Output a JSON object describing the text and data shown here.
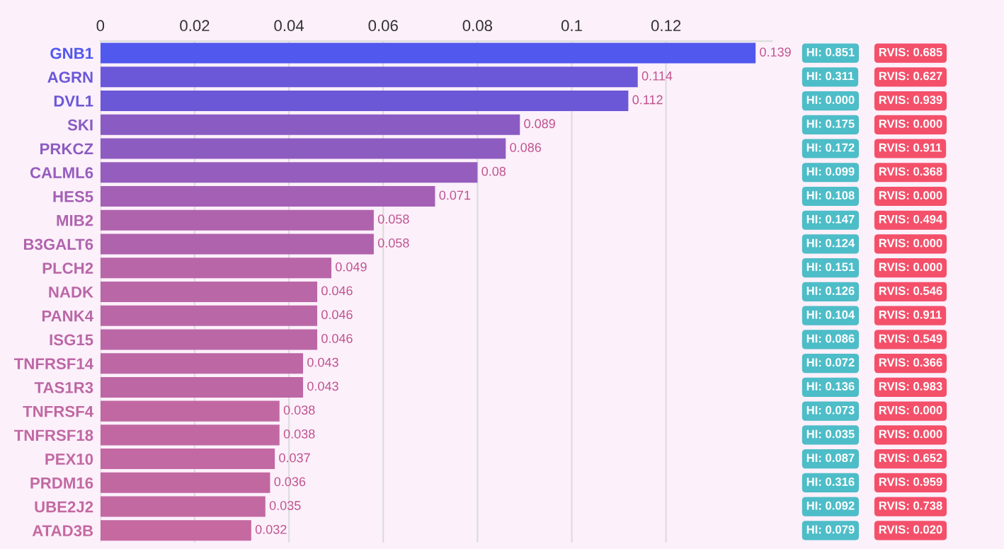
{
  "chart_data": {
    "type": "bar",
    "orientation": "horizontal",
    "categories": [
      "GNB1",
      "AGRN",
      "DVL1",
      "SKI",
      "PRKCZ",
      "CALML6",
      "HES5",
      "MIB2",
      "B3GALT6",
      "PLCH2",
      "NADK",
      "PANK4",
      "ISG15",
      "TNFRSF14",
      "TAS1R3",
      "TNFRSF4",
      "TNFRSF18",
      "PEX10",
      "PRDM16",
      "UBE2J2",
      "ATAD3B"
    ],
    "values": [
      0.139,
      0.114,
      0.112,
      0.089,
      0.086,
      0.08,
      0.071,
      0.058,
      0.058,
      0.049,
      0.046,
      0.046,
      0.046,
      0.043,
      0.043,
      0.038,
      0.038,
      0.037,
      0.036,
      0.035,
      0.032
    ],
    "colors": [
      "#5158ee",
      "#6a58d8",
      "#6b58d6",
      "#8a5bc3",
      "#8d5cc1",
      "#955dbd",
      "#a460b5",
      "#b063ad",
      "#b063ad",
      "#b866a8",
      "#ba67a7",
      "#ba67a7",
      "#bb67a6",
      "#bd67a5",
      "#bd67a5",
      "#c168a2",
      "#c168a2",
      "#c268a2",
      "#c268a1",
      "#c369a1",
      "#c569a0"
    ],
    "xlim": [
      0,
      0.1425
    ],
    "xticks": [
      0,
      0.02,
      0.04,
      0.06,
      0.08,
      0.1,
      0.12
    ],
    "grid": "x",
    "data_labels": true,
    "annotations": [
      "HI: 0.851",
      "RVIS: 0.685",
      "HI: 0.311",
      "RVIS: 0.627",
      "HI: 0.000",
      "RVIS: 0.939",
      "HI: 0.175",
      "RVIS: 0.000",
      "HI: 0.172",
      "RVIS: 0.911",
      "HI: 0.099",
      "RVIS: 0.368",
      "HI: 0.108",
      "RVIS: 0.000",
      "HI: 0.147",
      "RVIS: 0.494",
      "HI: 0.124",
      "RVIS: 0.000",
      "HI: 0.151",
      "RVIS: 0.000",
      "HI: 0.126",
      "RVIS: 0.546",
      "HI: 0.104",
      "RVIS: 0.911",
      "HI: 0.086",
      "RVIS: 0.549",
      "HI: 0.072",
      "RVIS: 0.366",
      "HI: 0.136",
      "RVIS: 0.983",
      "HI: 0.073",
      "RVIS: 0.000",
      "HI: 0.035",
      "RVIS: 0.000",
      "HI: 0.087",
      "RVIS: 0.652",
      "HI: 0.316",
      "RVIS: 0.959",
      "HI: 0.092",
      "RVIS: 0.738",
      "HI: 0.079",
      "RVIS: 0.020"
    ]
  }
}
